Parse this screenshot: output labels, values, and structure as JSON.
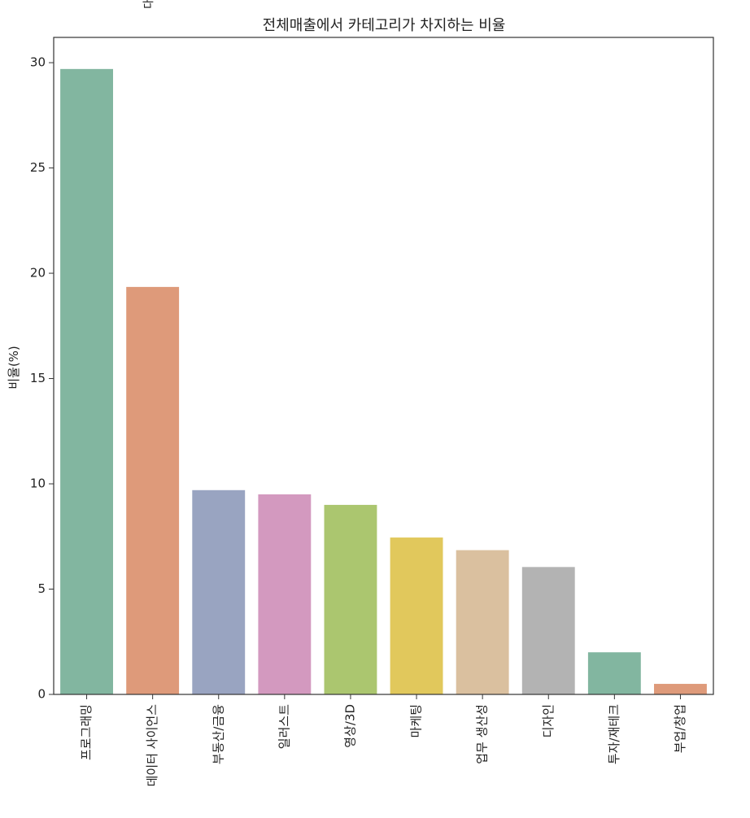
{
  "chart_data": {
    "type": "bar",
    "title": "전체매출에서 카테고리가 차지하는 비율",
    "top_clipped_text": "대",
    "xlabel": "",
    "ylabel": "비율(%)",
    "ylim": [
      0,
      31.2
    ],
    "yticks": [
      0,
      5,
      10,
      15,
      20,
      25,
      30
    ],
    "grid": false,
    "categories": [
      "프로그래밍",
      "데이터 사이언스",
      "부동산/금융",
      "일러스트",
      "영상/3D",
      "마케팅",
      "업무 생산성",
      "디자인",
      "투자/재테크",
      "부업/창업"
    ],
    "values": [
      29.7,
      19.35,
      9.7,
      9.5,
      9.0,
      7.45,
      6.85,
      6.05,
      2.0,
      0.5
    ],
    "colors": [
      "#82b6a0",
      "#de9a7a",
      "#99a4c1",
      "#d399bf",
      "#abc66f",
      "#e1c85c",
      "#dac09f",
      "#b3b3b3",
      "#82b6a0",
      "#de9a7a"
    ]
  }
}
